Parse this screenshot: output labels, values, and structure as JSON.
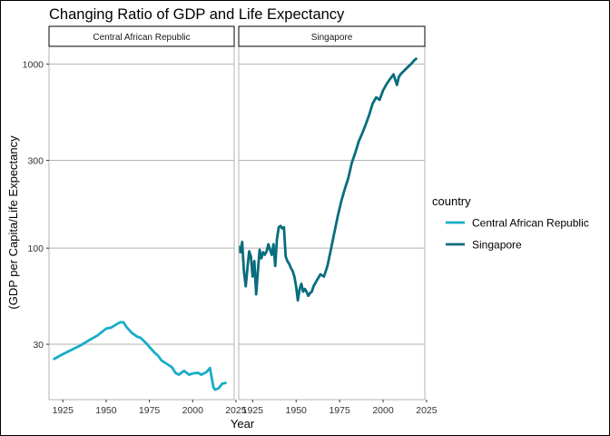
{
  "chart_data": {
    "type": "line",
    "title": "Changing Ratio of GDP and Life Expectancy",
    "xlabel": "Year",
    "ylabel": "(GDP per Capita/Life Expectancy",
    "y_scale": "log10",
    "ylim": [
      15,
      1250
    ],
    "xlim": [
      1917,
      2024
    ],
    "x_ticks": [
      1925,
      1950,
      1975,
      2000,
      2025
    ],
    "y_ticks": [
      30,
      100,
      300,
      1000
    ],
    "grid": "horizontal major lines",
    "legend": {
      "title": "country",
      "position": "right"
    },
    "panels": [
      {
        "label": "Central African Republic",
        "series": "Central African Republic",
        "x": [
          1920,
          1925,
          1930,
          1935,
          1940,
          1945,
          1950,
          1953,
          1955,
          1958,
          1960,
          1962,
          1965,
          1968,
          1970,
          1973,
          1975,
          1978,
          1980,
          1982,
          1985,
          1988,
          1990,
          1992,
          1995,
          1998,
          2000,
          2003,
          2005,
          2008,
          2010,
          2012,
          2013,
          2015,
          2017,
          2019
        ],
        "y": [
          25,
          26.5,
          28,
          29.5,
          31.5,
          33.5,
          36.5,
          37,
          38,
          39.5,
          39.5,
          37,
          34.5,
          33,
          32.5,
          30.5,
          29,
          27,
          26,
          24.5,
          23.5,
          22.5,
          21,
          20.5,
          21.5,
          20.5,
          20.8,
          21,
          20.5,
          21.2,
          22.3,
          17.5,
          17,
          17.3,
          18.3,
          18.5
        ]
      },
      {
        "label": "Singapore",
        "series": "Singapore",
        "x": [
          1915,
          1916,
          1917,
          1918,
          1919,
          1920,
          1921,
          1922,
          1923,
          1924,
          1925,
          1926,
          1927,
          1928,
          1929,
          1930,
          1931,
          1932,
          1933,
          1934,
          1935,
          1936,
          1937,
          1938,
          1939,
          1940,
          1941,
          1942,
          1943,
          1944,
          1945,
          1946,
          1947,
          1948,
          1949,
          1950,
          1951,
          1952,
          1953,
          1954,
          1955,
          1956,
          1957,
          1958,
          1959,
          1960,
          1962,
          1964,
          1966,
          1968,
          1970,
          1972,
          1974,
          1976,
          1978,
          1980,
          1982,
          1984,
          1986,
          1988,
          1990,
          1992,
          1994,
          1996,
          1998,
          2000,
          2002,
          2004,
          2006,
          2008,
          2009,
          2010,
          2012,
          2014,
          2016,
          2018,
          2019
        ],
        "y": [
          78,
          100,
          102,
          95,
          108,
          75,
          62,
          78,
          96,
          90,
          70,
          85,
          56,
          75,
          98,
          88,
          95,
          92,
          96,
          105,
          98,
          92,
          105,
          80,
          112,
          130,
          132,
          128,
          130,
          90,
          85,
          82,
          78,
          75,
          70,
          62,
          52,
          60,
          64,
          58,
          60,
          58,
          55,
          57,
          58,
          62,
          67,
          72,
          70,
          80,
          98,
          122,
          150,
          180,
          210,
          240,
          290,
          330,
          380,
          420,
          470,
          530,
          610,
          660,
          640,
          720,
          780,
          830,
          880,
          770,
          850,
          880,
          920,
          960,
          1000,
          1050,
          1070
        ]
      }
    ]
  },
  "colors": {
    "Central African Republic": "#1AACC8",
    "Singapore": "#086D7D",
    "grid": "#B3B3B3",
    "panel_border": "#B3B3B3",
    "strip_border": "#000000"
  }
}
